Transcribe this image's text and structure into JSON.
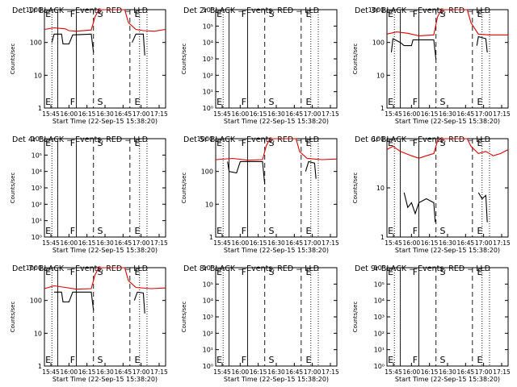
{
  "chart_data": [
    {
      "type": "line",
      "title": "Det 1r  BLACK = Events, RED = LLD",
      "xlabel": "Start Time (22-Sep-15 15:38:20)",
      "ylabel": "Counts/sec",
      "yscale": "log",
      "ylim": [
        1,
        1000
      ],
      "y_ticks": [
        "1",
        "10",
        "100",
        "1000"
      ],
      "x_ticks": [
        "15:45",
        "16:00",
        "16:15",
        "16:30",
        "16:45",
        "17:00",
        "17:15"
      ],
      "xlim": [
        15.67,
        17.3
      ],
      "markers": [
        {
          "label": "E",
          "x": 15.72
        },
        {
          "label": "F",
          "x": 16.05
        },
        {
          "label": "S",
          "x": 16.42
        },
        {
          "label": "E",
          "x": 16.92
        }
      ],
      "series": [
        {
          "name": "RED",
          "values": [
            [
              15.67,
              250
            ],
            [
              15.8,
              280
            ],
            [
              15.95,
              260
            ],
            [
              16.0,
              230
            ],
            [
              16.1,
              220
            ],
            [
              16.3,
              240
            ],
            [
              16.35,
              600
            ],
            [
              16.4,
              1000
            ],
            [
              16.75,
              1000
            ],
            [
              16.8,
              400
            ],
            [
              16.9,
              250
            ],
            [
              17.0,
              230
            ],
            [
              17.15,
              220
            ],
            [
              17.3,
              250
            ]
          ]
        },
        {
          "name": "BLACK",
          "values": [
            [
              15.77,
              100
            ],
            [
              15.8,
              180
            ],
            [
              15.9,
              180
            ],
            [
              15.92,
              90
            ],
            [
              16.0,
              90
            ],
            [
              16.05,
              170
            ],
            [
              16.3,
              180
            ],
            [
              16.33,
              50
            ]
          ]
        },
        {
          "name": "BLACK",
          "values": [
            [
              16.85,
              100
            ],
            [
              16.9,
              180
            ],
            [
              17.0,
              180
            ],
            [
              17.02,
              40
            ]
          ]
        }
      ]
    },
    {
      "type": "line",
      "title": "Det 2r  BLACK = Events, RED = LLD",
      "xlabel": "Start Time (22-Sep-15 15:38:20)",
      "ylabel": "Counts/sec",
      "yscale": "log",
      "ylim": [
        1,
        1000000.0
      ],
      "y_ticks": [
        "10⁰",
        "10¹",
        "10²",
        "10³",
        "10⁴",
        "10⁵",
        "10⁶"
      ],
      "x_ticks": [
        "15:45",
        "16:00",
        "16:15",
        "16:30",
        "16:45",
        "17:00",
        "17:15"
      ],
      "xlim": [
        15.67,
        17.3
      ],
      "markers": [
        {
          "label": "E",
          "x": 15.72
        },
        {
          "label": "F",
          "x": 16.05
        },
        {
          "label": "S",
          "x": 16.42
        },
        {
          "label": "E",
          "x": 16.92
        }
      ],
      "series": []
    },
    {
      "type": "line",
      "title": "Det 3r  BLACK = Events, RED = LLD",
      "xlabel": "Start Time (22-Sep-15 15:38:20)",
      "ylabel": "Counts/sec",
      "yscale": "log",
      "ylim": [
        1,
        1000
      ],
      "y_ticks": [
        "1",
        "10",
        "100",
        "1000"
      ],
      "x_ticks": [
        "15:45",
        "16:00",
        "16:15",
        "16:30",
        "16:45",
        "17:00",
        "17:15"
      ],
      "xlim": [
        15.67,
        17.3
      ],
      "markers": [
        {
          "label": "E",
          "x": 15.72
        },
        {
          "label": "F",
          "x": 16.05
        },
        {
          "label": "S",
          "x": 16.42
        },
        {
          "label": "E",
          "x": 16.92
        }
      ],
      "series": [
        {
          "name": "RED",
          "values": [
            [
              15.67,
              180
            ],
            [
              15.8,
              210
            ],
            [
              15.95,
              190
            ],
            [
              16.1,
              160
            ],
            [
              16.3,
              170
            ],
            [
              16.35,
              600
            ],
            [
              16.4,
              1000
            ],
            [
              16.75,
              1000
            ],
            [
              16.8,
              400
            ],
            [
              16.9,
              180
            ],
            [
              17.05,
              170
            ],
            [
              17.3,
              170
            ]
          ]
        },
        {
          "name": "BLACK",
          "values": [
            [
              15.73,
              50
            ],
            [
              15.75,
              130
            ],
            [
              15.85,
              100
            ],
            [
              15.9,
              80
            ],
            [
              16.0,
              80
            ],
            [
              16.02,
              120
            ],
            [
              16.3,
              120
            ],
            [
              16.33,
              30
            ]
          ]
        },
        {
          "name": "BLACK",
          "values": [
            [
              16.88,
              80
            ],
            [
              16.9,
              150
            ],
            [
              17.0,
              130
            ],
            [
              17.02,
              50
            ]
          ]
        }
      ]
    },
    {
      "type": "line",
      "title": "Det 4r  BLACK = Events, RED = LLD",
      "xlabel": "Start Time (22-Sep-15 15:38:20)",
      "ylabel": "Counts/sec",
      "yscale": "log",
      "ylim": [
        1,
        1000000.0
      ],
      "y_ticks": [
        "10⁰",
        "10¹",
        "10²",
        "10³",
        "10⁴",
        "10⁵",
        "10⁶"
      ],
      "x_ticks": [
        "15:45",
        "16:00",
        "16:15",
        "16:30",
        "16:45",
        "17:00",
        "17:15"
      ],
      "xlim": [
        15.67,
        17.3
      ],
      "markers": [
        {
          "label": "E",
          "x": 15.72
        },
        {
          "label": "F",
          "x": 16.05
        },
        {
          "label": "S",
          "x": 16.42
        },
        {
          "label": "E",
          "x": 16.92
        }
      ],
      "series": []
    },
    {
      "type": "line",
      "title": "Det 5r  BLACK = Events, RED = LLD",
      "xlabel": "Start Time (22-Sep-15 15:38:20)",
      "ylabel": "Counts/sec",
      "yscale": "log",
      "ylim": [
        1,
        1000
      ],
      "y_ticks": [
        "1",
        "10",
        "100",
        "1000"
      ],
      "x_ticks": [
        "15:45",
        "16:00",
        "16:15",
        "16:30",
        "16:45",
        "17:00",
        "17:15"
      ],
      "xlim": [
        15.67,
        17.3
      ],
      "markers": [
        {
          "label": "E",
          "x": 15.72
        },
        {
          "label": "F",
          "x": 16.05
        },
        {
          "label": "S",
          "x": 16.42
        },
        {
          "label": "E",
          "x": 16.92
        }
      ],
      "series": [
        {
          "name": "RED",
          "values": [
            [
              15.67,
              230
            ],
            [
              15.9,
              250
            ],
            [
              16.1,
              220
            ],
            [
              16.3,
              230
            ],
            [
              16.35,
              600
            ],
            [
              16.4,
              1000
            ],
            [
              16.75,
              1000
            ],
            [
              16.8,
              400
            ],
            [
              16.9,
              250
            ],
            [
              17.1,
              230
            ],
            [
              17.3,
              240
            ]
          ]
        },
        {
          "name": "BLACK",
          "values": [
            [
              15.83,
              200
            ],
            [
              15.85,
              100
            ],
            [
              15.95,
              90
            ],
            [
              16.0,
              200
            ],
            [
              16.3,
              200
            ],
            [
              16.33,
              40
            ]
          ]
        },
        {
          "name": "BLACK",
          "values": [
            [
              16.88,
              100
            ],
            [
              16.92,
              200
            ],
            [
              17.0,
              180
            ],
            [
              17.02,
              60
            ]
          ]
        }
      ]
    },
    {
      "type": "line",
      "title": "Det 6r  BLACK = Events, RED = LLD",
      "xlabel": "Start Time (22-Sep-15 15:38:20)",
      "ylabel": "Counts/sec",
      "yscale": "log",
      "ylim": [
        1,
        100
      ],
      "y_ticks": [
        "1",
        "10",
        "100"
      ],
      "x_ticks": [
        "15:45",
        "16:00",
        "16:15",
        "16:30",
        "16:45",
        "17:00",
        "17:15"
      ],
      "xlim": [
        15.67,
        17.3
      ],
      "markers": [
        {
          "label": "E",
          "x": 15.72
        },
        {
          "label": "F",
          "x": 16.05
        },
        {
          "label": "S",
          "x": 16.42
        },
        {
          "label": "E",
          "x": 16.92
        }
      ],
      "series": [
        {
          "name": "RED",
          "values": [
            [
              15.67,
              60
            ],
            [
              15.75,
              70
            ],
            [
              15.85,
              55
            ],
            [
              16.0,
              45
            ],
            [
              16.1,
              40
            ],
            [
              16.2,
              45
            ],
            [
              16.3,
              50
            ],
            [
              16.35,
              90
            ],
            [
              16.4,
              100
            ],
            [
              16.75,
              100
            ],
            [
              16.8,
              70
            ],
            [
              16.9,
              50
            ],
            [
              17.0,
              55
            ],
            [
              17.1,
              45
            ],
            [
              17.2,
              50
            ],
            [
              17.3,
              60
            ]
          ]
        },
        {
          "name": "BLACK",
          "values": [
            [
              15.9,
              8
            ],
            [
              15.95,
              4
            ],
            [
              16.0,
              5
            ],
            [
              16.05,
              3
            ],
            [
              16.1,
              5
            ],
            [
              16.2,
              6
            ],
            [
              16.3,
              5
            ],
            [
              16.32,
              2
            ]
          ]
        },
        {
          "name": "BLACK",
          "values": [
            [
              16.9,
              8
            ],
            [
              16.95,
              6
            ],
            [
              17.0,
              7
            ],
            [
              17.02,
              2
            ]
          ]
        }
      ]
    },
    {
      "type": "line",
      "title": "Det 7r  BLACK = Events, RED = LLD",
      "xlabel": "Start Time (22-Sep-15 15:38:20)",
      "ylabel": "Counts/sec",
      "yscale": "log",
      "ylim": [
        1,
        1000
      ],
      "y_ticks": [
        "1",
        "10",
        "100",
        "1000"
      ],
      "x_ticks": [
        "15:45",
        "16:00",
        "16:15",
        "16:30",
        "16:45",
        "17:00",
        "17:15"
      ],
      "xlim": [
        15.67,
        17.3
      ],
      "markers": [
        {
          "label": "E",
          "x": 15.72
        },
        {
          "label": "F",
          "x": 16.05
        },
        {
          "label": "S",
          "x": 16.42
        },
        {
          "label": "E",
          "x": 16.92
        }
      ],
      "series": [
        {
          "name": "RED",
          "values": [
            [
              15.67,
              230
            ],
            [
              15.8,
              280
            ],
            [
              15.95,
              250
            ],
            [
              16.1,
              220
            ],
            [
              16.3,
              230
            ],
            [
              16.35,
              600
            ],
            [
              16.4,
              1000
            ],
            [
              16.75,
              1000
            ],
            [
              16.8,
              400
            ],
            [
              16.9,
              250
            ],
            [
              17.1,
              230
            ],
            [
              17.3,
              240
            ]
          ]
        },
        {
          "name": "BLACK",
          "values": [
            [
              15.8,
              180
            ],
            [
              15.9,
              180
            ],
            [
              15.92,
              90
            ],
            [
              16.0,
              90
            ],
            [
              16.05,
              180
            ],
            [
              16.3,
              180
            ],
            [
              16.33,
              50
            ]
          ]
        },
        {
          "name": "BLACK",
          "values": [
            [
              16.88,
              100
            ],
            [
              16.92,
              180
            ],
            [
              17.0,
              170
            ],
            [
              17.02,
              40
            ]
          ]
        }
      ]
    },
    {
      "type": "line",
      "title": "Det 8r  BLACK = Events, RED = LLD",
      "xlabel": "Start Time (22-Sep-15 15:38:20)",
      "ylabel": "Counts/sec",
      "yscale": "log",
      "ylim": [
        1,
        1000000.0
      ],
      "y_ticks": [
        "10⁰",
        "10¹",
        "10²",
        "10³",
        "10⁴",
        "10⁵",
        "10⁶"
      ],
      "x_ticks": [
        "15:45",
        "16:00",
        "16:15",
        "16:30",
        "16:45",
        "17:00",
        "17:15"
      ],
      "xlim": [
        15.67,
        17.3
      ],
      "markers": [
        {
          "label": "E",
          "x": 15.72
        },
        {
          "label": "F",
          "x": 16.05
        },
        {
          "label": "S",
          "x": 16.42
        },
        {
          "label": "E",
          "x": 16.92
        }
      ],
      "series": []
    },
    {
      "type": "line",
      "title": "Det 9r  BLACK = Events, RED = LLD",
      "xlabel": "Start Time (22-Sep-15 15:38:20)",
      "ylabel": "Counts/sec",
      "yscale": "log",
      "ylim": [
        1,
        1000000.0
      ],
      "y_ticks": [
        "10⁰",
        "10¹",
        "10²",
        "10³",
        "10⁴",
        "10⁵",
        "10⁶"
      ],
      "x_ticks": [
        "15:45",
        "16:00",
        "16:15",
        "16:30",
        "16:45",
        "17:00",
        "17:15"
      ],
      "xlim": [
        15.67,
        17.3
      ],
      "markers": [
        {
          "label": "E",
          "x": 15.72
        },
        {
          "label": "F",
          "x": 16.05
        },
        {
          "label": "S",
          "x": 16.42
        },
        {
          "label": "E",
          "x": 16.92
        }
      ],
      "series": []
    }
  ],
  "colors": {
    "events": "#000000",
    "lld": "#dd0000",
    "background": "#ffffff"
  }
}
